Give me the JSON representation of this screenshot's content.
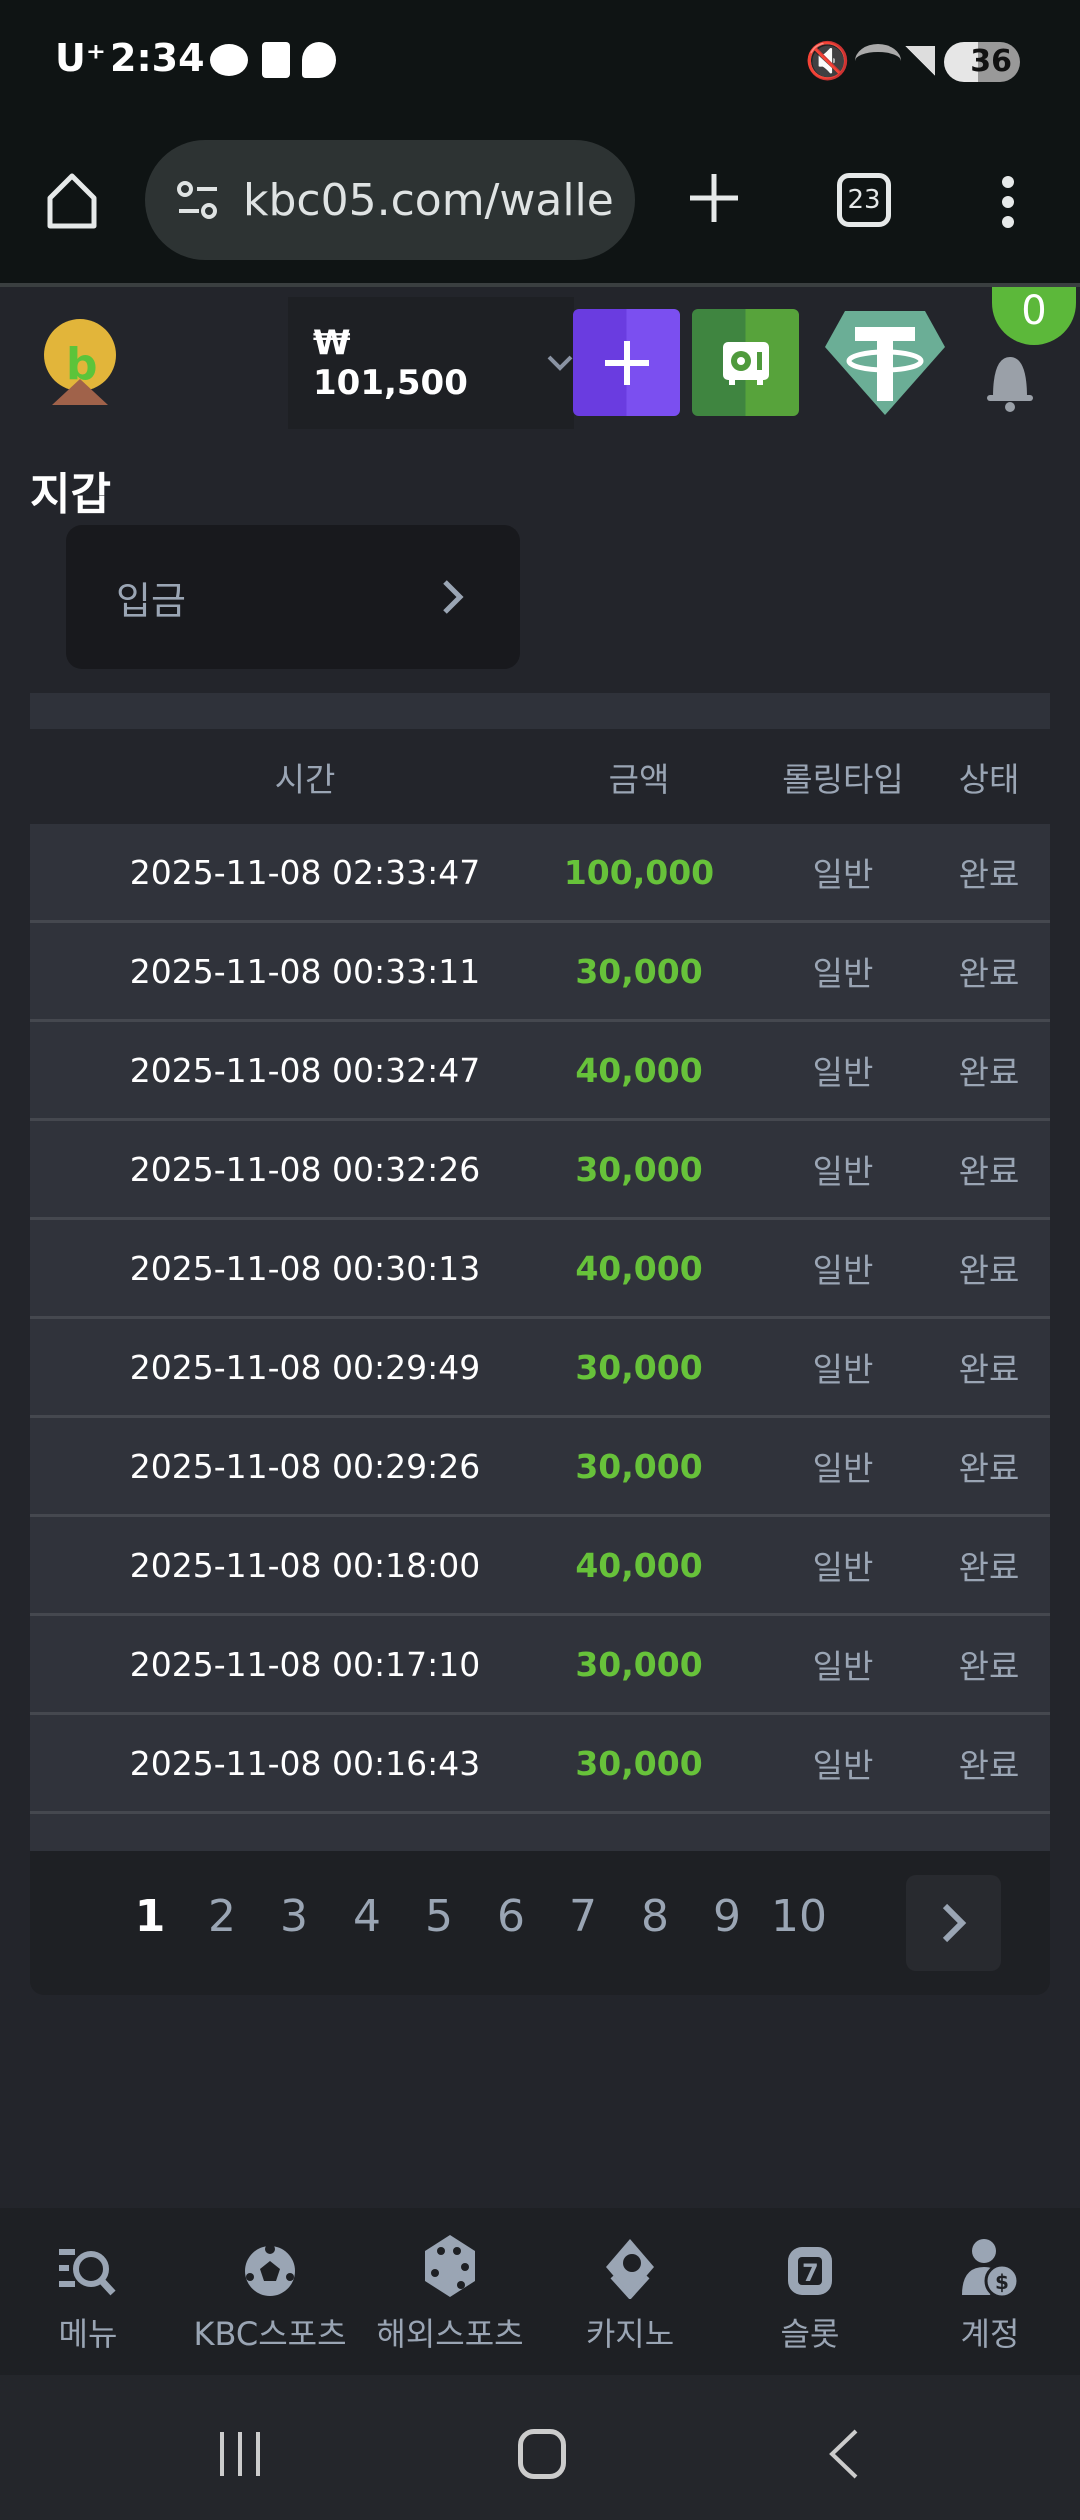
{
  "status_bar": {
    "carrier": "U⁺",
    "time": "2:34",
    "battery": "36",
    "icons": [
      "kakaotalk-icon",
      "b-app-icon",
      "thread-icon",
      "mute-icon",
      "wifi-icon",
      "signal-icon",
      "battery-icon"
    ]
  },
  "browser": {
    "url": "kbc05.com/walle",
    "tab_count": "23"
  },
  "header": {
    "balance": "₩ 101,500",
    "notification_count": "0",
    "colors": {
      "add": "#7b4ff0",
      "safe": "#57a33b",
      "tether": "#6bae96",
      "badge": "#5cb83a"
    }
  },
  "page": {
    "title": "지갑",
    "deposit_button": "입금"
  },
  "table": {
    "columns": [
      "시간",
      "금액",
      "롤링타입",
      "상태"
    ],
    "rows": [
      {
        "time": "2025-11-08 02:33:47",
        "amount": "100,000",
        "type": "일반",
        "status": "완료"
      },
      {
        "time": "2025-11-08 00:33:11",
        "amount": "30,000",
        "type": "일반",
        "status": "완료"
      },
      {
        "time": "2025-11-08 00:32:47",
        "amount": "40,000",
        "type": "일반",
        "status": "완료"
      },
      {
        "time": "2025-11-08 00:32:26",
        "amount": "30,000",
        "type": "일반",
        "status": "완료"
      },
      {
        "time": "2025-11-08 00:30:13",
        "amount": "40,000",
        "type": "일반",
        "status": "완료"
      },
      {
        "time": "2025-11-08 00:29:49",
        "amount": "30,000",
        "type": "일반",
        "status": "완료"
      },
      {
        "time": "2025-11-08 00:29:26",
        "amount": "30,000",
        "type": "일반",
        "status": "완료"
      },
      {
        "time": "2025-11-08 00:18:00",
        "amount": "40,000",
        "type": "일반",
        "status": "완료"
      },
      {
        "time": "2025-11-08 00:17:10",
        "amount": "30,000",
        "type": "일반",
        "status": "완료"
      },
      {
        "time": "2025-11-08 00:16:43",
        "amount": "30,000",
        "type": "일반",
        "status": "완료"
      }
    ],
    "amount_color": "#67c23a"
  },
  "pagination": {
    "pages": [
      "1",
      "2",
      "3",
      "4",
      "5",
      "6",
      "7",
      "8",
      "9",
      "10"
    ],
    "current": "1"
  },
  "bottom_nav": [
    {
      "label": "메뉴",
      "icon": "menu-search-icon"
    },
    {
      "label": "KBC스포츠",
      "icon": "soccer-ball-icon"
    },
    {
      "label": "해외스포츠",
      "icon": "dice-icon"
    },
    {
      "label": "카지노",
      "icon": "cards-icon"
    },
    {
      "label": "슬롯",
      "icon": "slot-seven-icon"
    },
    {
      "label": "계정",
      "icon": "account-coin-icon"
    }
  ]
}
